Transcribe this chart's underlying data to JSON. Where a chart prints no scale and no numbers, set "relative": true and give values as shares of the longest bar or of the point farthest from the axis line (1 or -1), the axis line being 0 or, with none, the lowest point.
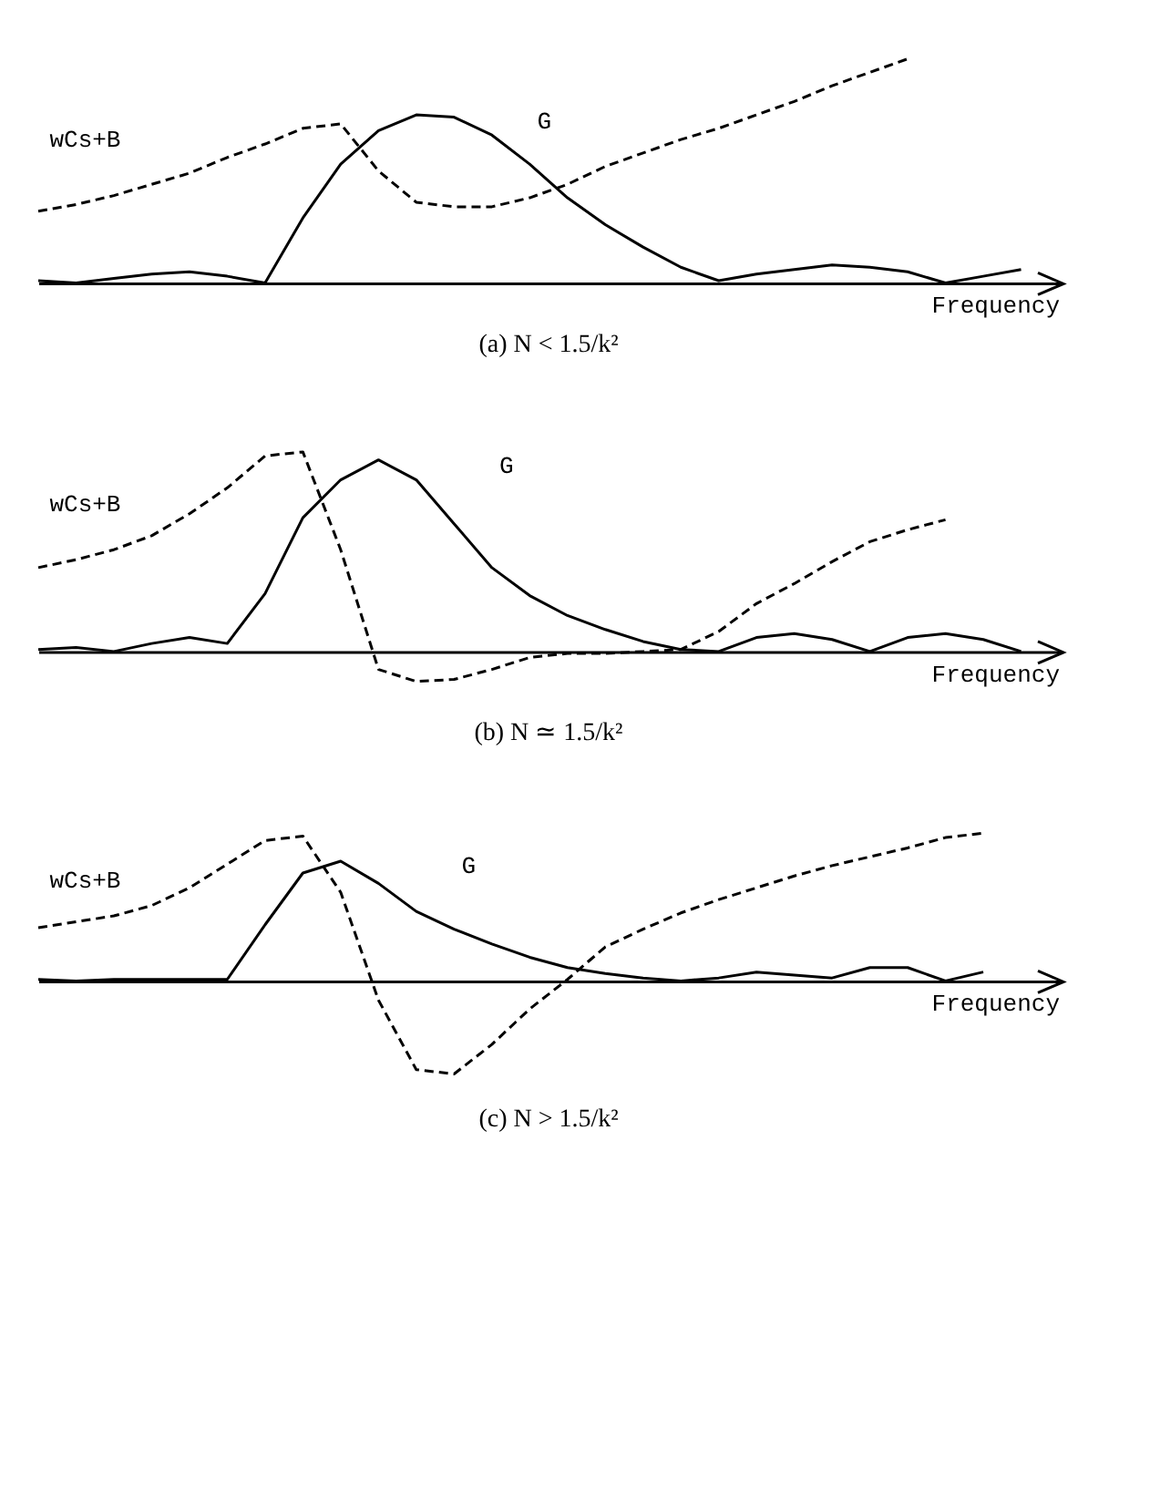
{
  "chart_data": [
    {
      "type": "line",
      "title": "(a) N < 1.5/k²",
      "xlabel": "Frequency",
      "relative": true,
      "categories": [
        null,
        null,
        null,
        null,
        null,
        null,
        null,
        null,
        null,
        null,
        null,
        null,
        null,
        null,
        null,
        null,
        null,
        null,
        null,
        null,
        null,
        null,
        null,
        null,
        null,
        null,
        null,
        null
      ],
      "series": [
        {
          "name": "wCs+B",
          "color": "#000000",
          "line_style": "dashed",
          "values": [
            0.32,
            0.35,
            0.39,
            0.44,
            0.49,
            0.56,
            0.62,
            0.69,
            0.71,
            0.5,
            0.36,
            0.34,
            0.34,
            0.38,
            0.44,
            0.52,
            0.58,
            0.64,
            0.69,
            0.75,
            0.81,
            0.88,
            0.94,
            1,
            null,
            null,
            null,
            null
          ]
        },
        {
          "name": "G",
          "color": "#000000",
          "line_style": "solid",
          "values": [
            0.01,
            0,
            0.02,
            0.04,
            0.05,
            0.03,
            0,
            0.29,
            0.53,
            0.68,
            0.75,
            0.74,
            0.66,
            0.53,
            0.38,
            0.26,
            0.16,
            0.07,
            0.01,
            0.04,
            0.06,
            0.08,
            0.07,
            0.05,
            0,
            0.03,
            0.06,
            null
          ]
        }
      ]
    },
    {
      "type": "line",
      "title": "(b) N ≃ 1.5/k²",
      "xlabel": "Frequency",
      "relative": true,
      "categories": [
        null,
        null,
        null,
        null,
        null,
        null,
        null,
        null,
        null,
        null,
        null,
        null,
        null,
        null,
        null,
        null,
        null,
        null,
        null,
        null,
        null,
        null,
        null,
        null,
        null,
        null,
        null,
        null
      ],
      "series": [
        {
          "name": "wCs+B",
          "color": "#000000",
          "line_style": "dashed",
          "values": [
            0.42,
            0.46,
            0.51,
            0.58,
            0.69,
            0.82,
            0.98,
            1,
            0.51,
            -0.09,
            -0.15,
            -0.14,
            -0.09,
            -0.03,
            -0.01,
            -0.01,
            0,
            0.01,
            0.1,
            0.24,
            0.34,
            0.45,
            0.55,
            0.61,
            0.66,
            null,
            null,
            null
          ]
        },
        {
          "name": "G",
          "color": "#000000",
          "line_style": "solid",
          "values": [
            0.01,
            0.02,
            0,
            0.04,
            0.07,
            0.04,
            0.29,
            0.67,
            0.86,
            0.96,
            0.86,
            0.64,
            0.42,
            0.28,
            0.18,
            0.11,
            0.05,
            0.01,
            0,
            0.07,
            0.09,
            0.06,
            0,
            0.07,
            0.09,
            0.06,
            0,
            null
          ]
        }
      ]
    },
    {
      "type": "line",
      "title": "(c) N > 1.5/k²",
      "xlabel": "Frequency",
      "relative": true,
      "categories": [
        null,
        null,
        null,
        null,
        null,
        null,
        null,
        null,
        null,
        null,
        null,
        null,
        null,
        null,
        null,
        null,
        null,
        null,
        null,
        null,
        null,
        null,
        null,
        null,
        null,
        null,
        null,
        null
      ],
      "series": [
        {
          "name": "wCs+B",
          "color": "#000000",
          "line_style": "dashed",
          "values": [
            0.36,
            0.4,
            0.44,
            0.51,
            0.63,
            0.79,
            0.95,
            0.98,
            0.6,
            -0.13,
            -0.6,
            -0.63,
            -0.43,
            -0.19,
            0.01,
            0.23,
            0.35,
            0.46,
            0.55,
            0.63,
            0.71,
            0.78,
            0.84,
            0.9,
            0.97,
            1,
            null,
            null
          ]
        },
        {
          "name": "G",
          "color": "#000000",
          "line_style": "solid",
          "values": [
            0.01,
            0,
            0.01,
            0.01,
            0.01,
            0.01,
            0.38,
            0.73,
            0.81,
            0.66,
            0.47,
            0.35,
            0.25,
            0.16,
            0.09,
            0.05,
            0.02,
            0,
            0.02,
            0.06,
            0.04,
            0.02,
            0.09,
            0.09,
            0,
            0.06,
            null,
            null
          ]
        }
      ]
    }
  ]
}
